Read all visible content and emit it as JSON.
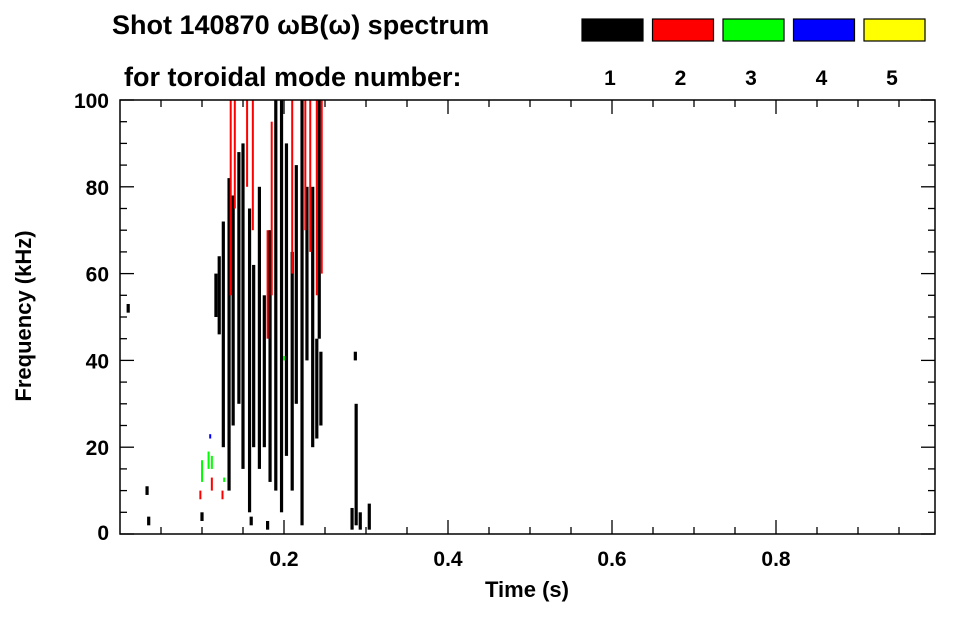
{
  "chart_data": {
    "type": "heatmap",
    "title_line1": "Shot 140870 ωB(ω) spectrum",
    "title_line2": "for toroidal mode number:",
    "xlabel": "Time (s)",
    "ylabel": "Frequency (kHz)",
    "xlim": [
      0,
      0.99
    ],
    "ylim": [
      0,
      100
    ],
    "xticks": [
      0.2,
      0.4,
      0.6,
      0.8
    ],
    "xtick_labels": [
      "0.2",
      "0.4",
      "0.6",
      "0.8"
    ],
    "yticks": [
      0,
      20,
      40,
      60,
      80,
      100
    ],
    "ytick_labels": [
      "0",
      "20",
      "40",
      "60",
      "80",
      "100"
    ],
    "legend": [
      {
        "label": "1",
        "color": "#000000"
      },
      {
        "label": "2",
        "color": "#ff0000"
      },
      {
        "label": "3",
        "color": "#00ff00"
      },
      {
        "label": "4",
        "color": "#0000ff"
      },
      {
        "label": "5",
        "color": "#ffff00"
      }
    ],
    "legend_placement": "top",
    "segments_note": "each segment: [time_s, f_min_kHz, f_max_kHz, mode]",
    "segments": [
      [
        0.117,
        50,
        60,
        1
      ],
      [
        0.121,
        46,
        64,
        1
      ],
      [
        0.126,
        20,
        72,
        1
      ],
      [
        0.133,
        10,
        82,
        1
      ],
      [
        0.138,
        25,
        78,
        1
      ],
      [
        0.145,
        30,
        88,
        1
      ],
      [
        0.15,
        15,
        90,
        1
      ],
      [
        0.158,
        5,
        75,
        1
      ],
      [
        0.163,
        20,
        62,
        1
      ],
      [
        0.17,
        15,
        80,
        1
      ],
      [
        0.176,
        20,
        55,
        1
      ],
      [
        0.183,
        12,
        70,
        1
      ],
      [
        0.19,
        10,
        100,
        1
      ],
      [
        0.197,
        5,
        100,
        1
      ],
      [
        0.203,
        18,
        90,
        1
      ],
      [
        0.21,
        10,
        65,
        1
      ],
      [
        0.215,
        30,
        85,
        1
      ],
      [
        0.222,
        2,
        100,
        1
      ],
      [
        0.228,
        40,
        80,
        1
      ],
      [
        0.235,
        20,
        80,
        1
      ],
      [
        0.24,
        22,
        45,
        1
      ],
      [
        0.245,
        25,
        42,
        1
      ],
      [
        0.243,
        45,
        100,
        1
      ],
      [
        0.283,
        1,
        6,
        1
      ],
      [
        0.288,
        2,
        30,
        1
      ],
      [
        0.293,
        1,
        5,
        1
      ],
      [
        0.304,
        1,
        7,
        1
      ],
      [
        0.287,
        40,
        42,
        1
      ],
      [
        0.01,
        51,
        53,
        1
      ],
      [
        0.033,
        9,
        11,
        1
      ],
      [
        0.035,
        2,
        4,
        1
      ],
      [
        0.1,
        3,
        5,
        1
      ],
      [
        0.16,
        2,
        4,
        1
      ],
      [
        0.18,
        1,
        3,
        1
      ],
      [
        0.135,
        55,
        100,
        2
      ],
      [
        0.14,
        75,
        100,
        2
      ],
      [
        0.155,
        80,
        100,
        2
      ],
      [
        0.162,
        70,
        100,
        2
      ],
      [
        0.18,
        45,
        70,
        2
      ],
      [
        0.185,
        55,
        95,
        2
      ],
      [
        0.21,
        60,
        100,
        2
      ],
      [
        0.226,
        70,
        100,
        2
      ],
      [
        0.232,
        65,
        100,
        2
      ],
      [
        0.24,
        55,
        100,
        2
      ],
      [
        0.246,
        60,
        100,
        2
      ],
      [
        0.098,
        8,
        10,
        2
      ],
      [
        0.112,
        10,
        13,
        2
      ],
      [
        0.125,
        8,
        10,
        2
      ],
      [
        0.1,
        12,
        17,
        3
      ],
      [
        0.108,
        15,
        19,
        3
      ],
      [
        0.112,
        15,
        18,
        3
      ],
      [
        0.127,
        12,
        13,
        3
      ],
      [
        0.2,
        40,
        41,
        3
      ],
      [
        0.11,
        22,
        23,
        4
      ]
    ]
  }
}
